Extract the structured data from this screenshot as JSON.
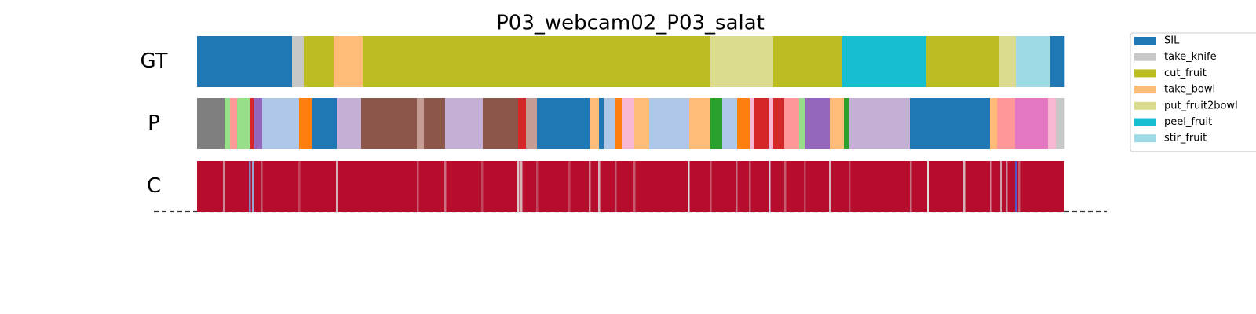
{
  "chart_data": {
    "type": "segmentation",
    "title": "P03_webcam02_P03_salat",
    "xlim": [
      0,
      1105
    ],
    "colormap": "coolwarm",
    "legend": {
      "position": "upper right",
      "entries": [
        {
          "name": "SIL",
          "color": "#1f77b4"
        },
        {
          "name": "take_knife",
          "color": "#c7c7c7"
        },
        {
          "name": "cut_fruit",
          "color": "#bcbd22"
        },
        {
          "name": "take_bowl",
          "color": "#ffbb78"
        },
        {
          "name": "put_fruit2bowl",
          "color": "#dbdb8d"
        },
        {
          "name": "peel_fruit",
          "color": "#17becf"
        },
        {
          "name": "stir_fruit",
          "color": "#9edae5"
        }
      ]
    },
    "rows": [
      {
        "label": "GT",
        "segments": [
          {
            "start": 0,
            "end": 121,
            "color": "#1f77b4"
          },
          {
            "start": 121,
            "end": 136,
            "color": "#c7c7c7"
          },
          {
            "start": 136,
            "end": 174,
            "color": "#bcbd22"
          },
          {
            "start": 174,
            "end": 211,
            "color": "#ffbb78"
          },
          {
            "start": 211,
            "end": 654,
            "color": "#bcbd22"
          },
          {
            "start": 654,
            "end": 734,
            "color": "#dbdb8d"
          },
          {
            "start": 734,
            "end": 822,
            "color": "#bcbd22"
          },
          {
            "start": 822,
            "end": 929,
            "color": "#17becf"
          },
          {
            "start": 929,
            "end": 1021,
            "color": "#bcbd22"
          },
          {
            "start": 1021,
            "end": 1043,
            "color": "#dbdb8d"
          },
          {
            "start": 1043,
            "end": 1087,
            "color": "#9edae5"
          },
          {
            "start": 1087,
            "end": 1105,
            "color": "#1f77b4"
          }
        ]
      },
      {
        "label": "P",
        "segments": [
          {
            "start": 0,
            "end": 35,
            "color": "#7f7f7f"
          },
          {
            "start": 35,
            "end": 42,
            "color": "#98df8a"
          },
          {
            "start": 42,
            "end": 51,
            "color": "#ff9896"
          },
          {
            "start": 51,
            "end": 67,
            "color": "#98df8a"
          },
          {
            "start": 67,
            "end": 72,
            "color": "#d62728"
          },
          {
            "start": 72,
            "end": 83,
            "color": "#9467bd"
          },
          {
            "start": 83,
            "end": 130,
            "color": "#aec7e8"
          },
          {
            "start": 130,
            "end": 147,
            "color": "#ff7f0e"
          },
          {
            "start": 147,
            "end": 178,
            "color": "#1f77b4"
          },
          {
            "start": 178,
            "end": 209,
            "color": "#c5b0d5"
          },
          {
            "start": 209,
            "end": 280,
            "color": "#8c564b"
          },
          {
            "start": 280,
            "end": 289,
            "color": "#c49c94"
          },
          {
            "start": 289,
            "end": 316,
            "color": "#8c564b"
          },
          {
            "start": 316,
            "end": 364,
            "color": "#c5b0d5"
          },
          {
            "start": 364,
            "end": 409,
            "color": "#8c564b"
          },
          {
            "start": 409,
            "end": 419,
            "color": "#d62728"
          },
          {
            "start": 419,
            "end": 433,
            "color": "#c49c94"
          },
          {
            "start": 433,
            "end": 500,
            "color": "#1f77b4"
          },
          {
            "start": 500,
            "end": 512,
            "color": "#ffbb78"
          },
          {
            "start": 512,
            "end": 518,
            "color": "#1f77b4"
          },
          {
            "start": 518,
            "end": 533,
            "color": "#aec7e8"
          },
          {
            "start": 533,
            "end": 541,
            "color": "#ff7f0e"
          },
          {
            "start": 541,
            "end": 557,
            "color": "#f7b6d2"
          },
          {
            "start": 557,
            "end": 576,
            "color": "#ffbb78"
          },
          {
            "start": 576,
            "end": 627,
            "color": "#aec7e8"
          },
          {
            "start": 627,
            "end": 654,
            "color": "#ffbb78"
          },
          {
            "start": 654,
            "end": 669,
            "color": "#2ca02c"
          },
          {
            "start": 669,
            "end": 688,
            "color": "#aec7e8"
          },
          {
            "start": 688,
            "end": 704,
            "color": "#ff7f0e"
          },
          {
            "start": 704,
            "end": 709,
            "color": "#f7b6d2"
          },
          {
            "start": 709,
            "end": 728,
            "color": "#d62728"
          },
          {
            "start": 728,
            "end": 734,
            "color": "#f7b6d2"
          },
          {
            "start": 734,
            "end": 748,
            "color": "#d62728"
          },
          {
            "start": 748,
            "end": 767,
            "color": "#ff9896"
          },
          {
            "start": 767,
            "end": 774,
            "color": "#98df8a"
          },
          {
            "start": 774,
            "end": 806,
            "color": "#9467bd"
          },
          {
            "start": 806,
            "end": 824,
            "color": "#ffbb78"
          },
          {
            "start": 824,
            "end": 831,
            "color": "#2ca02c"
          },
          {
            "start": 831,
            "end": 908,
            "color": "#c5b0d5"
          },
          {
            "start": 908,
            "end": 1010,
            "color": "#1f77b4"
          },
          {
            "start": 1010,
            "end": 1019,
            "color": "#ffbb78"
          },
          {
            "start": 1019,
            "end": 1042,
            "color": "#ff9896"
          },
          {
            "start": 1042,
            "end": 1084,
            "color": "#e377c2"
          },
          {
            "start": 1084,
            "end": 1094,
            "color": "#f7b6d2"
          },
          {
            "start": 1094,
            "end": 1105,
            "color": "#c7c7c7"
          }
        ]
      },
      {
        "label": "C",
        "baseline": 0.98,
        "x": [
          34,
          67,
          71,
          82,
          130,
          178,
          281,
          316,
          363,
          409,
          413,
          433,
          474,
          500,
          512,
          533,
          557,
          626,
          654,
          687,
          704,
          729,
          749,
          774,
          806,
          831,
          909,
          931,
          977,
          1011,
          1024,
          1031,
          1043,
          1047
        ],
        "values": [
          0.7,
          0.2,
          0.3,
          0.8,
          0.85,
          0.6,
          0.8,
          0.75,
          0.85,
          0.55,
          0.6,
          0.85,
          0.85,
          0.7,
          0.6,
          0.8,
          0.8,
          0.5,
          0.8,
          0.75,
          0.8,
          0.45,
          0.8,
          0.85,
          0.6,
          0.85,
          0.75,
          0.5,
          0.6,
          0.7,
          0.65,
          0.7,
          0.05,
          0.8
        ]
      }
    ]
  }
}
